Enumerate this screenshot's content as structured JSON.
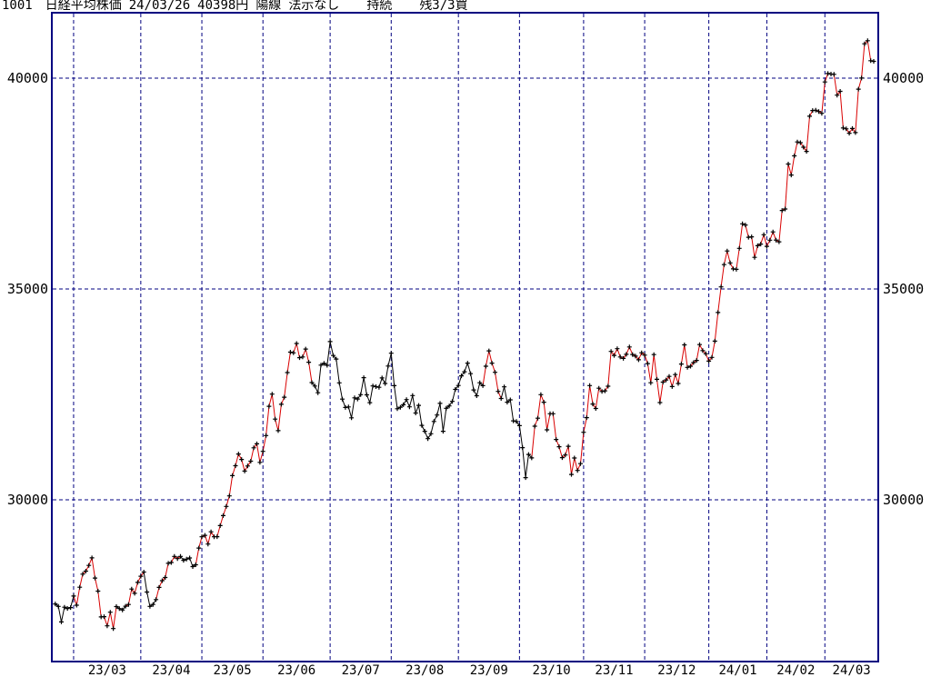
{
  "header": {
    "code": "1001",
    "name": "日経平均株価",
    "date": "24/03/26",
    "price": "40398円",
    "candle": "陽線",
    "signal": "法示なし",
    "status": "持続",
    "position": "残3/3買"
  },
  "colors": {
    "axis": "#000080",
    "grid": "#000080",
    "up_segment": "#d90000",
    "down_segment": "#000000",
    "marker": "#000000",
    "text": "#000000",
    "background": "#ffffff"
  },
  "chart_data": {
    "type": "line",
    "title": "1001 日経平均株価 24/03/26 40398円 陽線 法示なし 持続 残3/3買",
    "xlabel": "",
    "ylabel": "",
    "grid": "dashed navy, horizontal at y gridlines and vertical at month starts",
    "legend_position": "none",
    "ylim": [
      26185,
      41550
    ],
    "y_gridlines": [
      {
        "label": "40000",
        "value": 40000
      },
      {
        "label": "35000",
        "value": 35000
      },
      {
        "label": "30000",
        "value": 30000
      }
    ],
    "month_ticks": [
      {
        "label": "23/03",
        "index": 6
      },
      {
        "label": "23/04",
        "index": 28
      },
      {
        "label": "23/05",
        "index": 48
      },
      {
        "label": "23/06",
        "index": 68
      },
      {
        "label": "23/07",
        "index": 90
      },
      {
        "label": "23/08",
        "index": 110
      },
      {
        "label": "23/09",
        "index": 132
      },
      {
        "label": "23/10",
        "index": 152
      },
      {
        "label": "23/11",
        "index": 173
      },
      {
        "label": "23/12",
        "index": 193
      },
      {
        "label": "24/01",
        "index": 214
      },
      {
        "label": "24/02",
        "index": 233
      },
      {
        "label": "24/03",
        "index": 252
      }
    ],
    "values": [
      27531,
      27473,
      27104,
      27453,
      27423,
      27445,
      27717,
      27499,
      27927,
      28238,
      28309,
      28444,
      28623,
      28144,
      27833,
      27222,
      27229,
      27011,
      27334,
      26946,
      27467,
      27420,
      27385,
      27477,
      27518,
      27884,
      27783,
      28041,
      28188,
      28287,
      27813,
      27472,
      27518,
      27633,
      27923,
      28082,
      28157,
      28493,
      28514,
      28658,
      28606,
      28657,
      28564,
      28593,
      28620,
      28416,
      28458,
      28856,
      29123,
      29158,
      28950,
      29242,
      29122,
      29126,
      29388,
      29626,
      29842,
      30093,
      30573,
      30808,
      31086,
      30957,
      30682,
      30801,
      30916,
      31233,
      31328,
      30887,
      31148,
      31524,
      32217,
      32506,
      31913,
      31641,
      32265,
      32434,
      33018,
      33502,
      33485,
      33706,
      33370,
      33389,
      33575,
      33264,
      32781,
      32698,
      32538,
      33193,
      33234,
      33189,
      33753,
      33422,
      33338,
      32773,
      32388,
      32189,
      32203,
      31943,
      32419,
      32391,
      32493,
      32896,
      32490,
      32304,
      32700,
      32683,
      32668,
      32891,
      32759,
      33172,
      33476,
      32707,
      32159,
      32193,
      32254,
      32377,
      32204,
      32473,
      32059,
      32239,
      31766,
      31626,
      31451,
      31566,
      31857,
      32010,
      32287,
      31624,
      32170,
      32227,
      32333,
      32619,
      32711,
      32939,
      33037,
      33241,
      32991,
      32606,
      32467,
      32776,
      32706,
      33168,
      33533,
      33242,
      33023,
      32571,
      32402,
      32678,
      32315,
      32371,
      31872,
      31857,
      31759,
      31237,
      30526,
      31075,
      30994,
      31746,
      31936,
      32494,
      32315,
      31659,
      32040,
      32042,
      31430,
      31259,
      30999,
      31062,
      31269,
      30601,
      30991,
      30696,
      30858,
      31601,
      31949,
      32708,
      32271,
      32166,
      32646,
      32568,
      32585,
      32695,
      33519,
      33424,
      33585,
      33388,
      33354,
      33451,
      33625,
      33447,
      33408,
      33321,
      33486,
      33431,
      33231,
      32775,
      33445,
      32858,
      32307,
      32791,
      32843,
      32926,
      32686,
      32970,
      32758,
      33219,
      33675,
      33140,
      33169,
      33254,
      33305,
      33681,
      33539,
      33464,
      33288,
      33377,
      33763,
      34441,
      35049,
      35577,
      35901,
      35619,
      35477,
      35466,
      35963,
      36546,
      36517,
      36226,
      36236,
      35751,
      36026,
      36065,
      36286,
      36011,
      36158,
      36354,
      36160,
      36119,
      36863,
      36897,
      37963,
      37703,
      38157,
      38487,
      38470,
      38363,
      38262,
      39098,
      39233,
      39239,
      39208,
      39166,
      39910,
      40109,
      40097,
      40090,
      39598,
      39688,
      38820,
      38797,
      38695,
      38807,
      38708,
      39740,
      40003,
      40815,
      40888,
      40414,
      40398
    ],
    "red_ranges": [
      [
        7,
        20
      ],
      [
        24,
        29
      ],
      [
        34,
        41
      ],
      [
        47,
        84
      ],
      [
        141,
        146
      ],
      [
        157,
        268
      ]
    ]
  }
}
